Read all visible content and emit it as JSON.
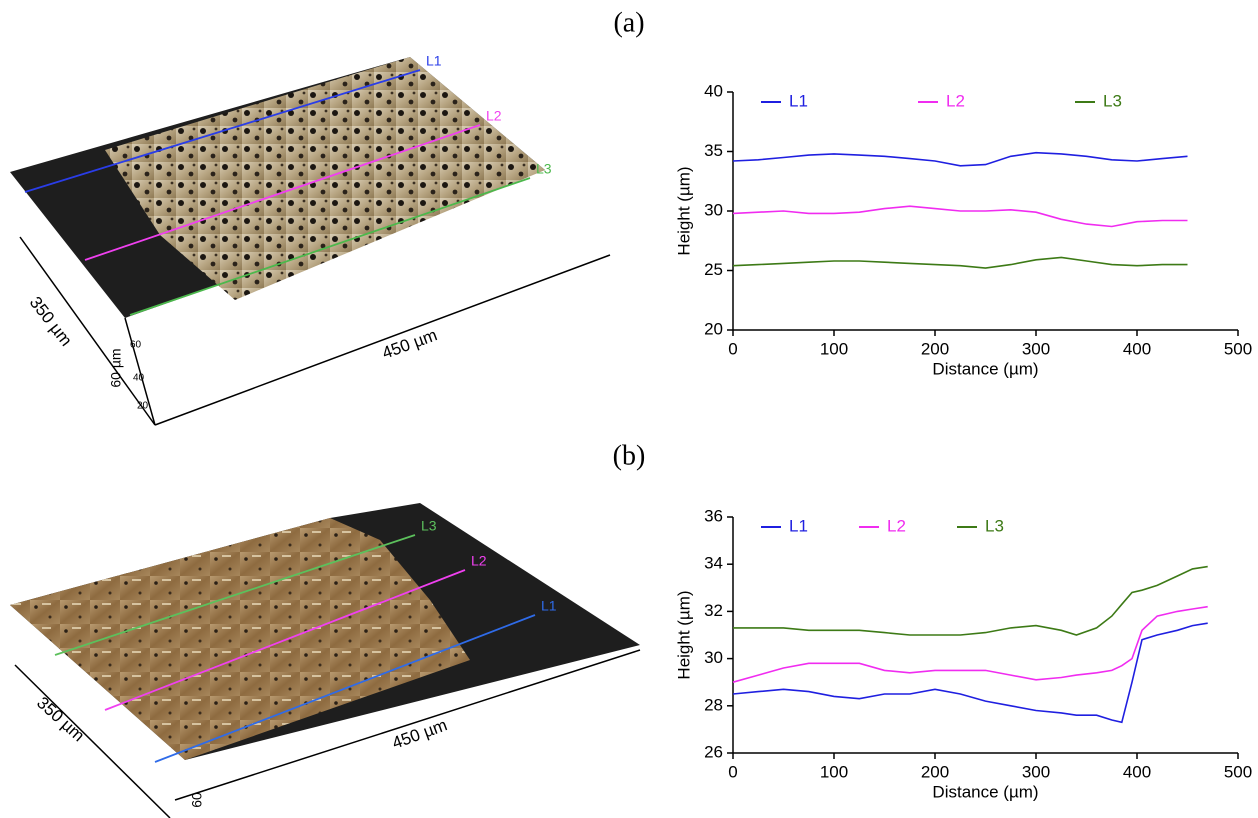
{
  "panel_labels": [
    "(a)",
    "(b)"
  ],
  "images": [
    {
      "lines": [
        "L1",
        "L2",
        "L3"
      ],
      "width_label": "350 µm",
      "length_label": "450 µm",
      "height_label": "60 µm",
      "height_ticks": [
        "60",
        "40",
        "20"
      ]
    },
    {
      "lines": [
        "L1",
        "L2",
        "L3"
      ],
      "width_label": "350 µm",
      "length_label": "450 µm",
      "height_label": "60"
    }
  ],
  "chart_data": [
    {
      "type": "line",
      "xlabel": "Distance (µm)",
      "ylabel": "Height (µm)",
      "x": [
        0,
        25,
        50,
        75,
        100,
        125,
        150,
        175,
        200,
        225,
        250,
        275,
        300,
        325,
        350,
        375,
        400,
        425,
        450
      ],
      "series": [
        {
          "name": "L1",
          "color": "#1f1fe0",
          "values": [
            34.2,
            34.3,
            34.5,
            34.7,
            34.8,
            34.7,
            34.6,
            34.4,
            34.2,
            33.8,
            33.9,
            34.6,
            34.9,
            34.8,
            34.6,
            34.3,
            34.2,
            34.4,
            34.6
          ]
        },
        {
          "name": "L2",
          "color": "#f02cf0",
          "values": [
            29.8,
            29.9,
            30.0,
            29.8,
            29.8,
            29.9,
            30.2,
            30.4,
            30.2,
            30.0,
            30.0,
            30.1,
            29.9,
            29.3,
            28.9,
            28.7,
            29.1,
            29.2,
            29.2
          ]
        },
        {
          "name": "L3",
          "color": "#3d7a16",
          "values": [
            25.4,
            25.5,
            25.6,
            25.7,
            25.8,
            25.8,
            25.7,
            25.6,
            25.5,
            25.4,
            25.2,
            25.5,
            25.9,
            26.1,
            25.8,
            25.5,
            25.4,
            25.5,
            25.5
          ]
        }
      ],
      "xlim": [
        0,
        500
      ],
      "xticks": [
        0,
        100,
        200,
        300,
        400,
        500
      ],
      "ylim": [
        20,
        40
      ],
      "yticks": [
        20,
        25,
        30,
        35,
        40
      ],
      "grid": false,
      "legend": "top"
    },
    {
      "type": "line",
      "xlabel": "Distance (µm)",
      "ylabel": "Height (µm)",
      "x": [
        0,
        25,
        50,
        75,
        100,
        125,
        150,
        175,
        200,
        225,
        250,
        275,
        300,
        325,
        340,
        360,
        375,
        385,
        395,
        405,
        420,
        440,
        455,
        470
      ],
      "series": [
        {
          "name": "L1",
          "color": "#1f1fe0",
          "values": [
            28.5,
            28.6,
            28.7,
            28.6,
            28.4,
            28.3,
            28.5,
            28.5,
            28.7,
            28.5,
            28.2,
            28.0,
            27.8,
            27.7,
            27.6,
            27.6,
            27.4,
            27.3,
            29.0,
            30.8,
            31.0,
            31.2,
            31.4,
            31.5
          ]
        },
        {
          "name": "L2",
          "color": "#f02cf0",
          "values": [
            29.0,
            29.3,
            29.6,
            29.8,
            29.8,
            29.8,
            29.5,
            29.4,
            29.5,
            29.5,
            29.5,
            29.3,
            29.1,
            29.2,
            29.3,
            29.4,
            29.5,
            29.7,
            30.0,
            31.2,
            31.8,
            32.0,
            32.1,
            32.2
          ]
        },
        {
          "name": "L3",
          "color": "#3d7a16",
          "values": [
            31.3,
            31.3,
            31.3,
            31.2,
            31.2,
            31.2,
            31.1,
            31.0,
            31.0,
            31.0,
            31.1,
            31.3,
            31.4,
            31.2,
            31.0,
            31.3,
            31.8,
            32.3,
            32.8,
            32.9,
            33.1,
            33.5,
            33.8,
            33.9
          ]
        }
      ],
      "xlim": [
        0,
        500
      ],
      "xticks": [
        0,
        100,
        200,
        300,
        400,
        500
      ],
      "ylim": [
        26,
        36
      ],
      "yticks": [
        26,
        28,
        30,
        32,
        34,
        36
      ],
      "grid": false,
      "legend": "top"
    }
  ]
}
